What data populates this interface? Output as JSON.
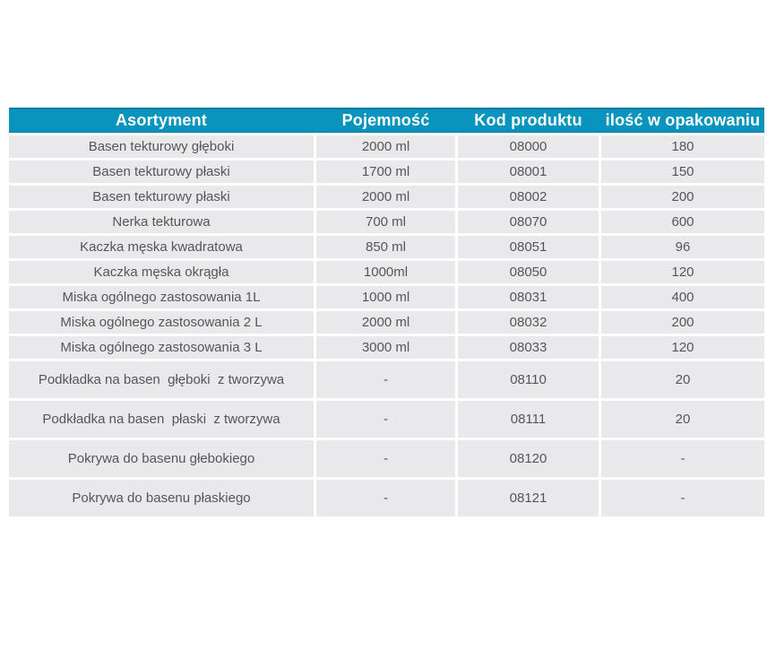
{
  "colors": {
    "header_bg": "#0894BC",
    "header_edge": "#077C9E",
    "header_text": "#FFFFFF",
    "row_bg": "#E9E9EB",
    "body_text": "#55565A",
    "page_bg": "#FFFFFF"
  },
  "table": {
    "columns": [
      {
        "label": "Asortyment"
      },
      {
        "label": "Pojemność"
      },
      {
        "label": "Kod produktu"
      },
      {
        "label": "ilość w opakowaniu"
      }
    ],
    "rows": [
      {
        "asortyment": "Basen tekturowy głęboki",
        "pojemnosc": "2000 ml",
        "kod": "08000",
        "ilosc": "180"
      },
      {
        "asortyment": "Basen tekturowy płaski",
        "pojemnosc": "1700 ml",
        "kod": "08001",
        "ilosc": "150"
      },
      {
        "asortyment": "Basen tekturowy płaski",
        "pojemnosc": "2000 ml",
        "kod": "08002",
        "ilosc": "200"
      },
      {
        "asortyment": "Nerka tekturowa",
        "pojemnosc": "700 ml",
        "kod": "08070",
        "ilosc": "600"
      },
      {
        "asortyment": "Kaczka męska kwadratowa",
        "pojemnosc": "850 ml",
        "kod": "08051",
        "ilosc": "96"
      },
      {
        "asortyment": "Kaczka męska okrągła",
        "pojemnosc": "1000ml",
        "kod": "08050",
        "ilosc": "120"
      },
      {
        "asortyment": "Miska ogólnego zastosowania 1L",
        "pojemnosc": "1000 ml",
        "kod": "08031",
        "ilosc": "400"
      },
      {
        "asortyment": "Miska ogólnego zastosowania 2 L",
        "pojemnosc": "2000 ml",
        "kod": "08032",
        "ilosc": "200"
      },
      {
        "asortyment": "Miska ogólnego zastosowania 3 L",
        "pojemnosc": "3000 ml",
        "kod": "08033",
        "ilosc": "120"
      },
      {
        "asortyment": "Podkładka na basen  głęboki  z tworzywa",
        "pojemnosc": "-",
        "kod": "08110",
        "ilosc": "20"
      },
      {
        "asortyment": "Podkładka na basen  płaski  z tworzywa",
        "pojemnosc": "-",
        "kod": "08111",
        "ilosc": "20"
      },
      {
        "asortyment": "Pokrywa do basenu głebokiego",
        "pojemnosc": "-",
        "kod": "08120",
        "ilosc": "-"
      },
      {
        "asortyment": "Pokrywa do basenu płaskiego",
        "pojemnosc": "-",
        "kod": "08121",
        "ilosc": "-"
      }
    ]
  }
}
